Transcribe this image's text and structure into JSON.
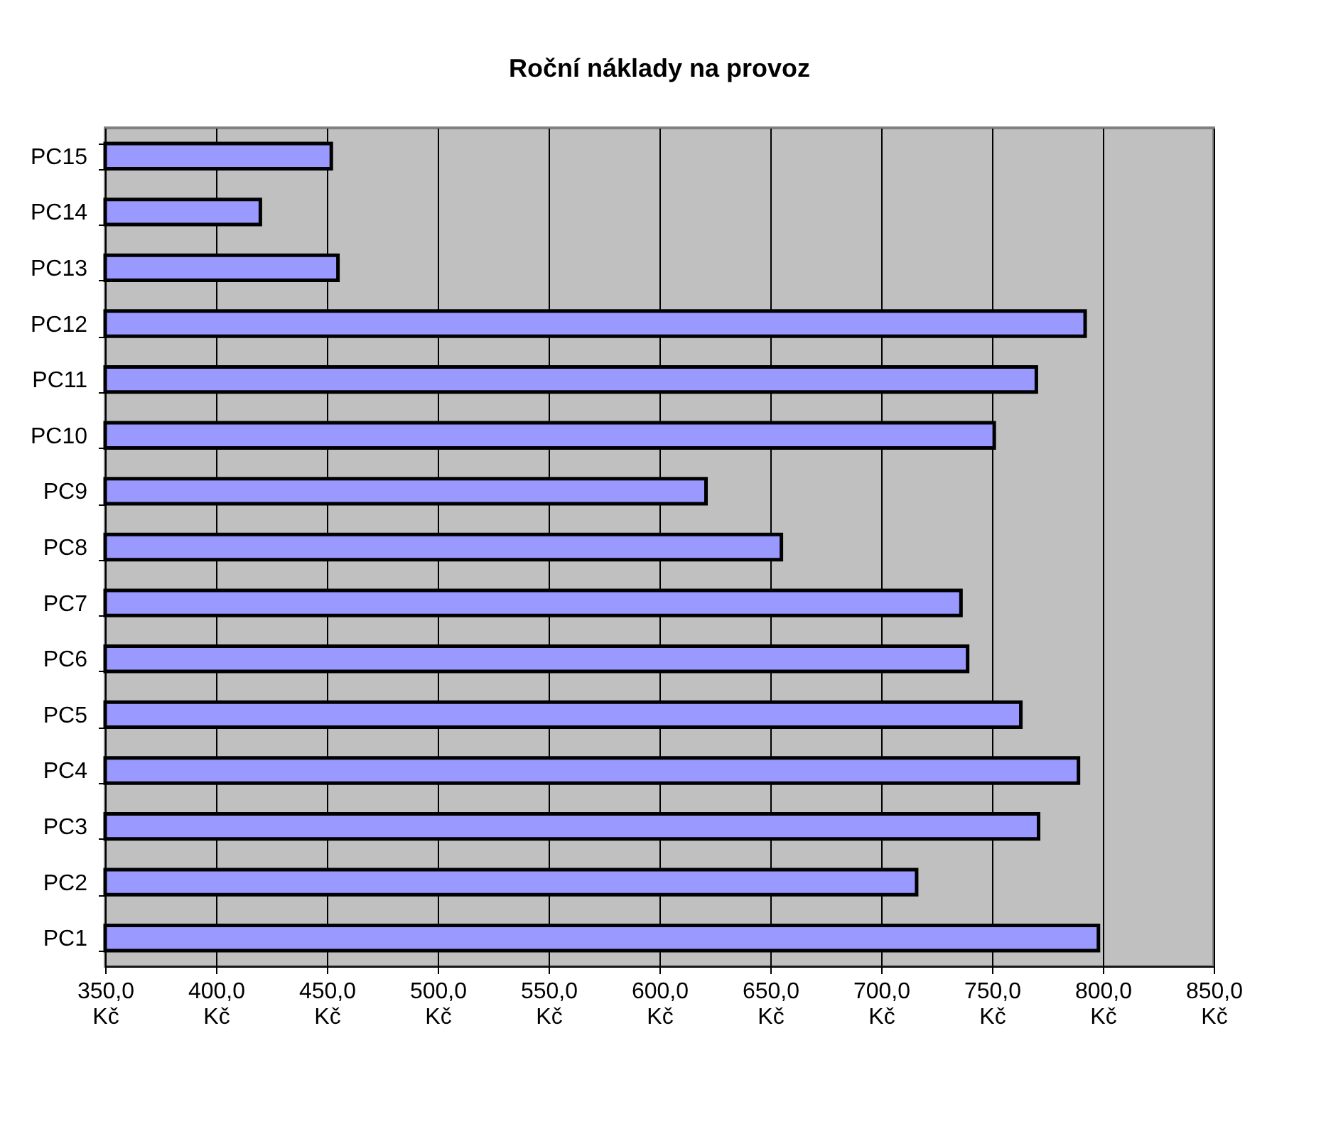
{
  "chart_data": {
    "type": "bar",
    "orientation": "horizontal",
    "title": "Roční náklady na provoz",
    "categories": [
      "PC15",
      "PC14",
      "PC13",
      "PC12",
      "PC11",
      "PC10",
      "PC9",
      "PC8",
      "PC7",
      "PC6",
      "PC5",
      "PC4",
      "PC3",
      "PC2",
      "PC1"
    ],
    "values": [
      452,
      420,
      455,
      792,
      770,
      751,
      621,
      655,
      736,
      739,
      763,
      789,
      771,
      716,
      798
    ],
    "color": "#9999ff",
    "xlim": [
      350,
      850
    ],
    "xticks": [
      {
        "value": 350,
        "label": "350,0 Kč"
      },
      {
        "value": 400,
        "label": "400,0 Kč"
      },
      {
        "value": 450,
        "label": "450,0 Kč"
      },
      {
        "value": 500,
        "label": "500,0 Kč"
      },
      {
        "value": 550,
        "label": "550,0 Kč"
      },
      {
        "value": 600,
        "label": "600,0 Kč"
      },
      {
        "value": 650,
        "label": "650,0 Kč"
      },
      {
        "value": 700,
        "label": "700,0 Kč"
      },
      {
        "value": 750,
        "label": "750,0 Kč"
      },
      {
        "value": 800,
        "label": "800,0 Kč"
      },
      {
        "value": 850,
        "label": "850,0 Kč"
      }
    ],
    "grid": "x"
  }
}
